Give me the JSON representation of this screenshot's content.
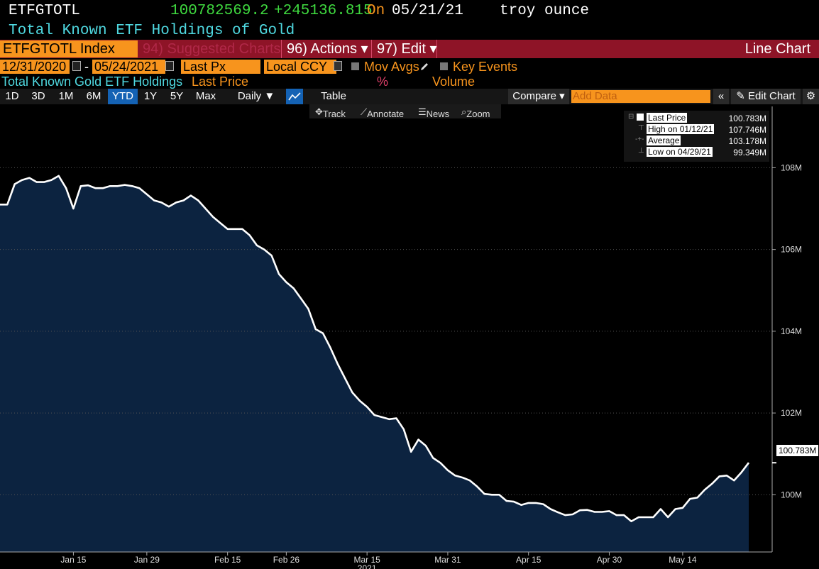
{
  "header": {
    "ticker": "ETFGTOTL",
    "value": "100782569.2",
    "change": "+245136.815",
    "on_label": "On",
    "date": "05/21/21",
    "unit": "troy ounce",
    "description": "Total Known ETF Holdings of Gold"
  },
  "menubar": {
    "security": "ETFGTOTL Index",
    "suggested": "94) Suggested Charts",
    "actions": "96) Actions ▾",
    "edit": "97) Edit ▾",
    "chart_type": "Line Chart"
  },
  "daterow": {
    "start": "12/31/2020",
    "dash": "-",
    "end": "05/24/2021",
    "field": "Last Px",
    "currency": "Local CCY",
    "mov_avgs": "Mov Avgs",
    "key_events": "Key Events"
  },
  "legendrow": {
    "security_name": "Total Known Gold ETF Holdings",
    "price_label": "Last Price",
    "pct": "%",
    "volume": "Volume"
  },
  "toolbar": {
    "periods": [
      "1D",
      "3D",
      "1M",
      "6M",
      "YTD",
      "1Y",
      "5Y",
      "Max"
    ],
    "selected_period": "YTD",
    "frequency": "Daily ▼",
    "table": "Table",
    "compare": "Compare ▾",
    "add_data_placeholder": "Add Data",
    "collapse": "«",
    "edit_chart": "Edit Chart"
  },
  "subtoolbar": {
    "track": "Track",
    "annotate": "Annotate",
    "news": "News",
    "zoom": "Zoom"
  },
  "legend_box": {
    "items": [
      {
        "label": "Last Price",
        "value": "100.783M"
      },
      {
        "label": "High on 01/12/21",
        "value": "107.746M"
      },
      {
        "label": "Average",
        "value": "103.178M"
      },
      {
        "label": "Low on 04/29/21",
        "value": "99.349M"
      }
    ]
  },
  "colors": {
    "line": "#ffffff",
    "area": "#0c2340",
    "accent": "#f7941d",
    "bar": "#8e1427",
    "cyan": "#4fd8e0",
    "green": "#3fd93f"
  },
  "chart_data": {
    "type": "area",
    "title": "",
    "ylabel": "",
    "xlabel": "",
    "ylim": [
      98.6,
      109.5
    ],
    "y_unit": "M",
    "y_ticks": [
      100,
      102,
      104,
      106,
      108
    ],
    "y_tick_labels": [
      "100M",
      "102M",
      "104M",
      "106M",
      "108M"
    ],
    "x_ticks": [
      "Jan 15",
      "Jan 29",
      "Feb 15",
      "Feb 26",
      "Mar 15",
      "Mar 31",
      "Apr 15",
      "Apr 30",
      "May 14"
    ],
    "x_year_label": "2021",
    "last_value_label": "100.783M",
    "series": [
      {
        "values": [
          107.1,
          107.1,
          107.6,
          107.7,
          107.75,
          107.65,
          107.65,
          107.7,
          107.8,
          107.5,
          107.0,
          107.55,
          107.57,
          107.5,
          107.5,
          107.55,
          107.55,
          107.58,
          107.55,
          107.5,
          107.35,
          107.2,
          107.15,
          107.05,
          107.15,
          107.2,
          107.32,
          107.2,
          107.0,
          106.8,
          106.65,
          106.5,
          106.5,
          106.5,
          106.35,
          106.1,
          106.0,
          105.85,
          105.4,
          105.2,
          105.05,
          104.8,
          104.55,
          104.05,
          103.95,
          103.6,
          103.2,
          102.85,
          102.5,
          102.3,
          102.15,
          101.95,
          101.9,
          101.85,
          101.87,
          101.6,
          101.05,
          101.35,
          101.2,
          100.9,
          100.78,
          100.6,
          100.47,
          100.42,
          100.35,
          100.2,
          100.02,
          100.0,
          100.0,
          99.85,
          99.83,
          99.75,
          99.8,
          99.8,
          99.77,
          99.65,
          99.57,
          99.5,
          99.52,
          99.62,
          99.63,
          99.58,
          99.58,
          99.6,
          99.5,
          99.5,
          99.35,
          99.45,
          99.45,
          99.45,
          99.65,
          99.45,
          99.65,
          99.68,
          99.9,
          99.93,
          100.12,
          100.27,
          100.45,
          100.47,
          100.35,
          100.55,
          100.783
        ]
      }
    ]
  }
}
